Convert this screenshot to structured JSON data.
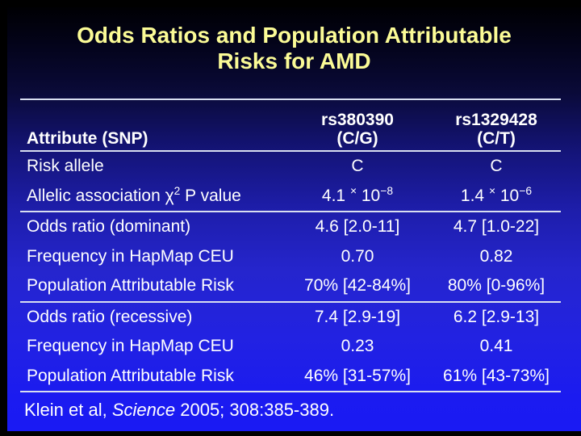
{
  "slide_title": "Odds Ratios and Population Attributable Risks for AMD",
  "table": {
    "header": {
      "attribute_label": "Attribute (SNP)",
      "columns": [
        {
          "snp": "rs380390",
          "alleles": "(C/G)"
        },
        {
          "snp": "rs1329428",
          "alleles": "(C/T)"
        }
      ]
    },
    "rows": [
      {
        "label": "Risk allele",
        "values": [
          "C",
          "C"
        ],
        "group_end": false
      },
      {
        "label": "Allelic association χ^{2} P value",
        "values": [
          "4.1 ^{×} 10^{−8}",
          "1.4 ^{×} 10^{−6}"
        ],
        "group_end": true
      },
      {
        "label": "Odds ratio (dominant)",
        "values": [
          "4.6 [2.0-11]",
          "4.7 [1.0-22]"
        ],
        "group_end": false
      },
      {
        "label": "Frequency in HapMap CEU",
        "values": [
          "0.70",
          "0.82"
        ],
        "group_end": false
      },
      {
        "label": "Population Attributable Risk",
        "values": [
          "70% [42-84%]",
          "80% [0-96%]"
        ],
        "group_end": true
      },
      {
        "label": "Odds ratio (recessive)",
        "values": [
          "7.4 [2.9-19]",
          "6.2 [2.9-13]"
        ],
        "group_end": false
      },
      {
        "label": "Frequency in HapMap CEU",
        "values": [
          "0.23",
          "0.41"
        ],
        "group_end": false
      },
      {
        "label": "Population Attributable Risk",
        "values": [
          "46% [31-57%]",
          "61% [43-73%]"
        ],
        "group_end": true
      }
    ]
  },
  "citation": "Klein et al,  *Science* 2005; 308:385-389.",
  "colors": {
    "title": "#fbfb96",
    "text": "#ffffff",
    "rule": "#d8def0",
    "background_top": "#000003",
    "background_bottom": "#1a1af4",
    "frame": "#000000"
  }
}
